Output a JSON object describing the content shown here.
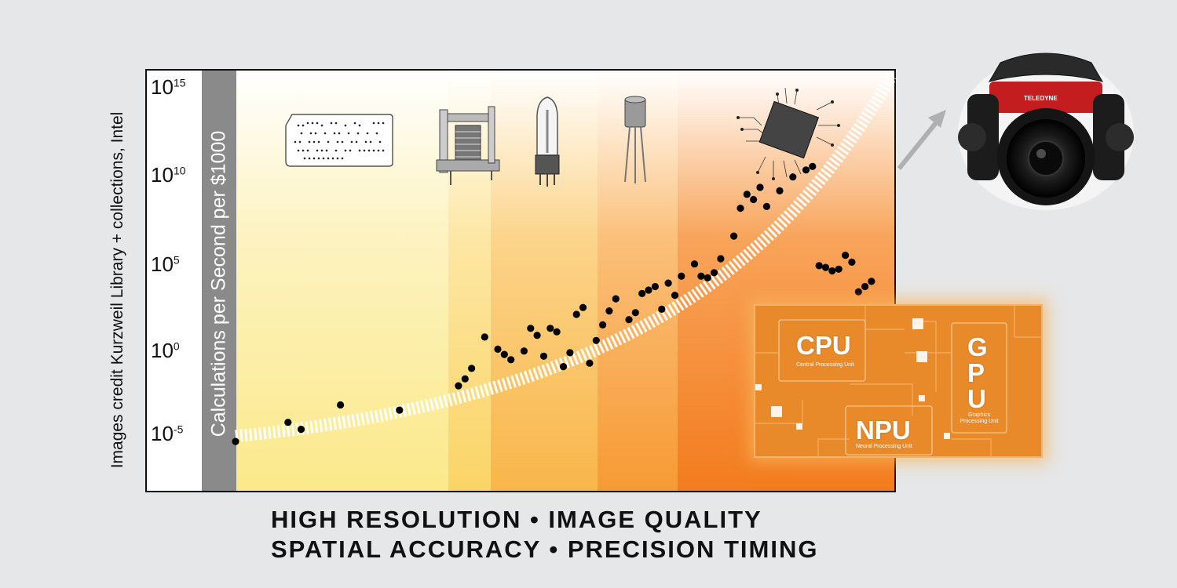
{
  "credit_text": "Images credit Kurzweil Library + collections, Intel",
  "caption": {
    "line1": "HIGH RESOLUTION • IMAGE QUALITY",
    "line2": "SPATIAL ACCURACY • PRECISION TIMING"
  },
  "processor_panel": {
    "cpu_label": "CPU",
    "cpu_sub": "Central Processing Unit",
    "gpu_label": "G\nP\nU",
    "gpu_sub": "Graphics Processing Unit",
    "npu_label": "NPU",
    "npu_sub": "Neural Processing Unit"
  },
  "camera_brand": "TELEDYNE",
  "icons": [
    "punch-card-icon",
    "relay-icon",
    "vacuum-tube-icon",
    "transistor-icon",
    "integrated-circuit-icon",
    "360-camera-icon"
  ],
  "colors": {
    "band_1": "#fbe98a",
    "band_2": "#fbd466",
    "band_3": "#f9b64a",
    "band_4": "#f79a34",
    "band_5": "#f37c1e",
    "points": "#000000",
    "trend": "#ffffff",
    "ylabel_strip": "#8a8a8a"
  },
  "chart_data": {
    "type": "scatter",
    "title": "",
    "xlabel": "",
    "ylabel": "Calculations per Second per $1000",
    "yscale": "log",
    "yticks": [
      "10^-5",
      "10^0",
      "10^5",
      "10^10",
      "10^15"
    ],
    "ylim_exponent": [
      -8,
      16
    ],
    "x_order": [
      0,
      0.08,
      0.1,
      0.16,
      0.25,
      0.34,
      0.35,
      0.36,
      0.38,
      0.4,
      0.41,
      0.42,
      0.44,
      0.45,
      0.46,
      0.47,
      0.48,
      0.49,
      0.5,
      0.51,
      0.52,
      0.53,
      0.54,
      0.55,
      0.56,
      0.57,
      0.58,
      0.6,
      0.61,
      0.62,
      0.63,
      0.64,
      0.65,
      0.66,
      0.67,
      0.68,
      0.7,
      0.71,
      0.72,
      0.73,
      0.74,
      0.76,
      0.77,
      0.78,
      0.79,
      0.8,
      0.81,
      0.83,
      0.85,
      0.87,
      0.88,
      0.89,
      0.9,
      0.91,
      0.92,
      0.93,
      0.94,
      0.95,
      0.96,
      0.97
    ],
    "y_exponent": [
      -5.5,
      -4.4,
      -4.8,
      -3.4,
      -3.7,
      -2.3,
      -1.9,
      -1.3,
      0.5,
      -0.2,
      -0.5,
      -0.8,
      -0.3,
      1.0,
      0.6,
      -0.6,
      1.0,
      0.8,
      -1.2,
      -0.4,
      1.8,
      2.2,
      -1.0,
      0.3,
      1.2,
      2.0,
      2.7,
      1.5,
      1.9,
      3.0,
      3.2,
      3.4,
      2.1,
      3.6,
      2.9,
      4.0,
      4.7,
      4.0,
      3.9,
      4.2,
      5.0,
      6.3,
      7.9,
      8.7,
      8.4,
      9.1,
      8.0,
      8.9,
      9.7,
      10.1,
      10.3,
      4.6,
      4.5,
      4.3,
      4.4,
      5.2,
      4.8,
      3.1,
      3.4,
      3.7
    ],
    "series": [
      {
        "name": "Punch card",
        "x_range": [
          0,
          0.29
        ]
      },
      {
        "name": "Relay",
        "x_range": [
          0.29,
          0.35
        ]
      },
      {
        "name": "Vacuum tube",
        "x_range": [
          0.35,
          0.5
        ]
      },
      {
        "name": "Transistor",
        "x_range": [
          0.5,
          0.61
        ]
      },
      {
        "name": "Integrated circuit",
        "x_range": [
          0.61,
          1.0
        ]
      }
    ]
  }
}
